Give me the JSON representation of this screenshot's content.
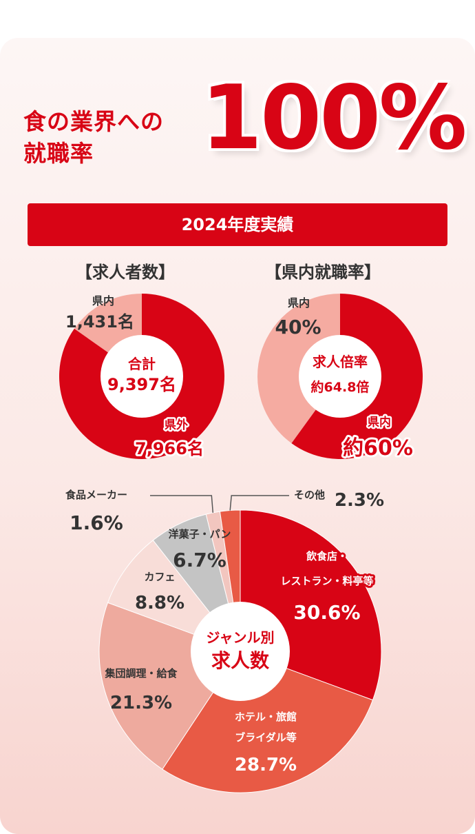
{
  "header": {
    "line1": "食の業界への",
    "line2": "就職率",
    "big_percent": "100%",
    "banner": "2024年度実績"
  },
  "colors": {
    "accent": "#d80415",
    "light": "#f5aba1"
  },
  "chart_data": [
    {
      "type": "pie",
      "heading": "【求人者数】",
      "center": {
        "line1": "合計",
        "line2": "9,397名"
      },
      "slices": [
        {
          "label": "県内",
          "value": 1431,
          "value_label": "1,431名"
        },
        {
          "label": "県外",
          "value": 7966,
          "value_label": "7,966名"
        }
      ]
    },
    {
      "type": "pie",
      "heading": "【県内就職率】",
      "center": {
        "line1": "求人倍率",
        "line2": "約64.8倍"
      },
      "slices": [
        {
          "label": "県内",
          "value": 40,
          "value_label": "40%"
        },
        {
          "label": "県内",
          "value": 60,
          "value_label": "約60%"
        }
      ]
    },
    {
      "type": "pie",
      "center": {
        "line1": "ジャンル別",
        "line2": "求人数"
      },
      "slices": [
        {
          "label": "飲食店・レストラン・料亭等",
          "value": 30.6,
          "value_label": "30.6%"
        },
        {
          "label": "ホテル・旅館ブライダル等",
          "value": 28.7,
          "value_label": "28.7%"
        },
        {
          "label": "集団調理・給食",
          "value": 21.3,
          "value_label": "21.3%"
        },
        {
          "label": "カフェ",
          "value": 8.8,
          "value_label": "8.8%"
        },
        {
          "label": "洋菓子・パン",
          "value": 6.7,
          "value_label": "6.7%"
        },
        {
          "label": "食品メーカー",
          "value": 1.6,
          "value_label": "1.6%"
        },
        {
          "label": "その他",
          "value": 2.3,
          "value_label": "2.3%"
        }
      ]
    }
  ]
}
